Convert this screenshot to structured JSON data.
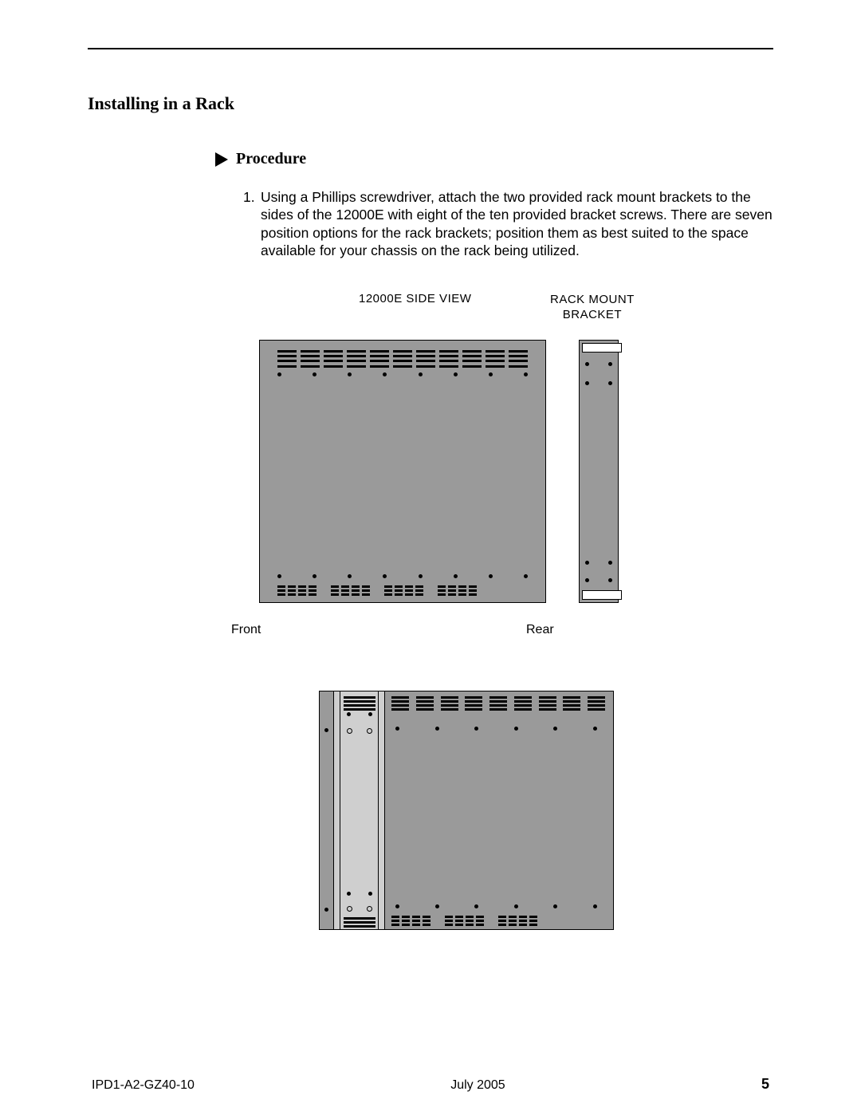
{
  "section_title": "Installing in a Rack",
  "procedure_label": "Procedure",
  "step": {
    "num": "1.",
    "text": "Using a Phillips screwdriver, attach the two provided rack mount brackets to the sides of the 12000E with eight of the ten provided bracket screws. There are seven position options for the rack brackets; position them as best suited to the space available for your chassis on the rack being utilized."
  },
  "labels": {
    "side_view": "12000E SIDE VIEW",
    "rack_bracket_l1": "RACK MOUNT",
    "rack_bracket_l2": "BRACKET",
    "front": "Front",
    "rear": "Rear"
  },
  "footer": {
    "doc_id": "IPD1-A2-GZ40-10",
    "date": "July 2005",
    "page": "5"
  },
  "style": {
    "chassis_fill": "#9a9a9a",
    "bracket_light": "#cfcfcf",
    "dot_color": "#000000",
    "bg": "#ffffff",
    "text": "#000000",
    "top_vent_cols": 11,
    "top_vent_lines": 4,
    "chassis_dot_count": 8,
    "bottom_vent_groups": 4,
    "bottom_vent_slots_per_group": 4,
    "d2_vent_cols": 9,
    "d2_dot_count": 6
  }
}
